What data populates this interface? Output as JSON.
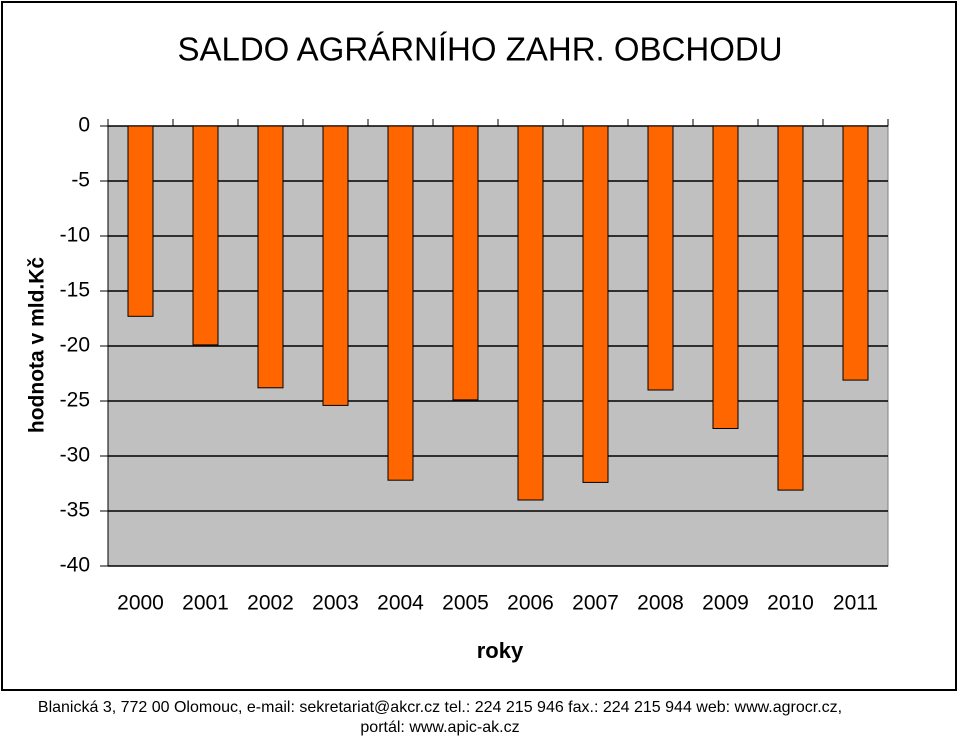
{
  "chart_data": {
    "type": "bar",
    "title": "SALDO  AGRÁRNÍHO  ZAHR.  OBCHODU",
    "y_label": "hodnota v mld.Kč",
    "x_label": "roky",
    "categories": [
      "2000",
      "2001",
      "2002",
      "2003",
      "2004",
      "2005",
      "2006",
      "2007",
      "2008",
      "2009",
      "2010",
      "2011"
    ],
    "values": [
      -17.3,
      -19.9,
      -23.8,
      -25.4,
      -32.2,
      -24.9,
      -34.0,
      -32.4,
      -24.0,
      -27.5,
      -33.1,
      -23.1
    ],
    "color": "#ff6600",
    "ylim": [
      -40,
      0
    ],
    "yticks": [
      0,
      -5,
      -10,
      -15,
      -20,
      -25,
      -30,
      -35,
      -40
    ],
    "grid": true
  },
  "footer": [
    "Blanická 3, 772 00 Olomouc, e-mail: sekretariat@akcr.cz tel.: 224 215 946 fax.: 224 215 944 web: www.agrocr.cz,",
    "portál: www.apic-ak.cz"
  ]
}
